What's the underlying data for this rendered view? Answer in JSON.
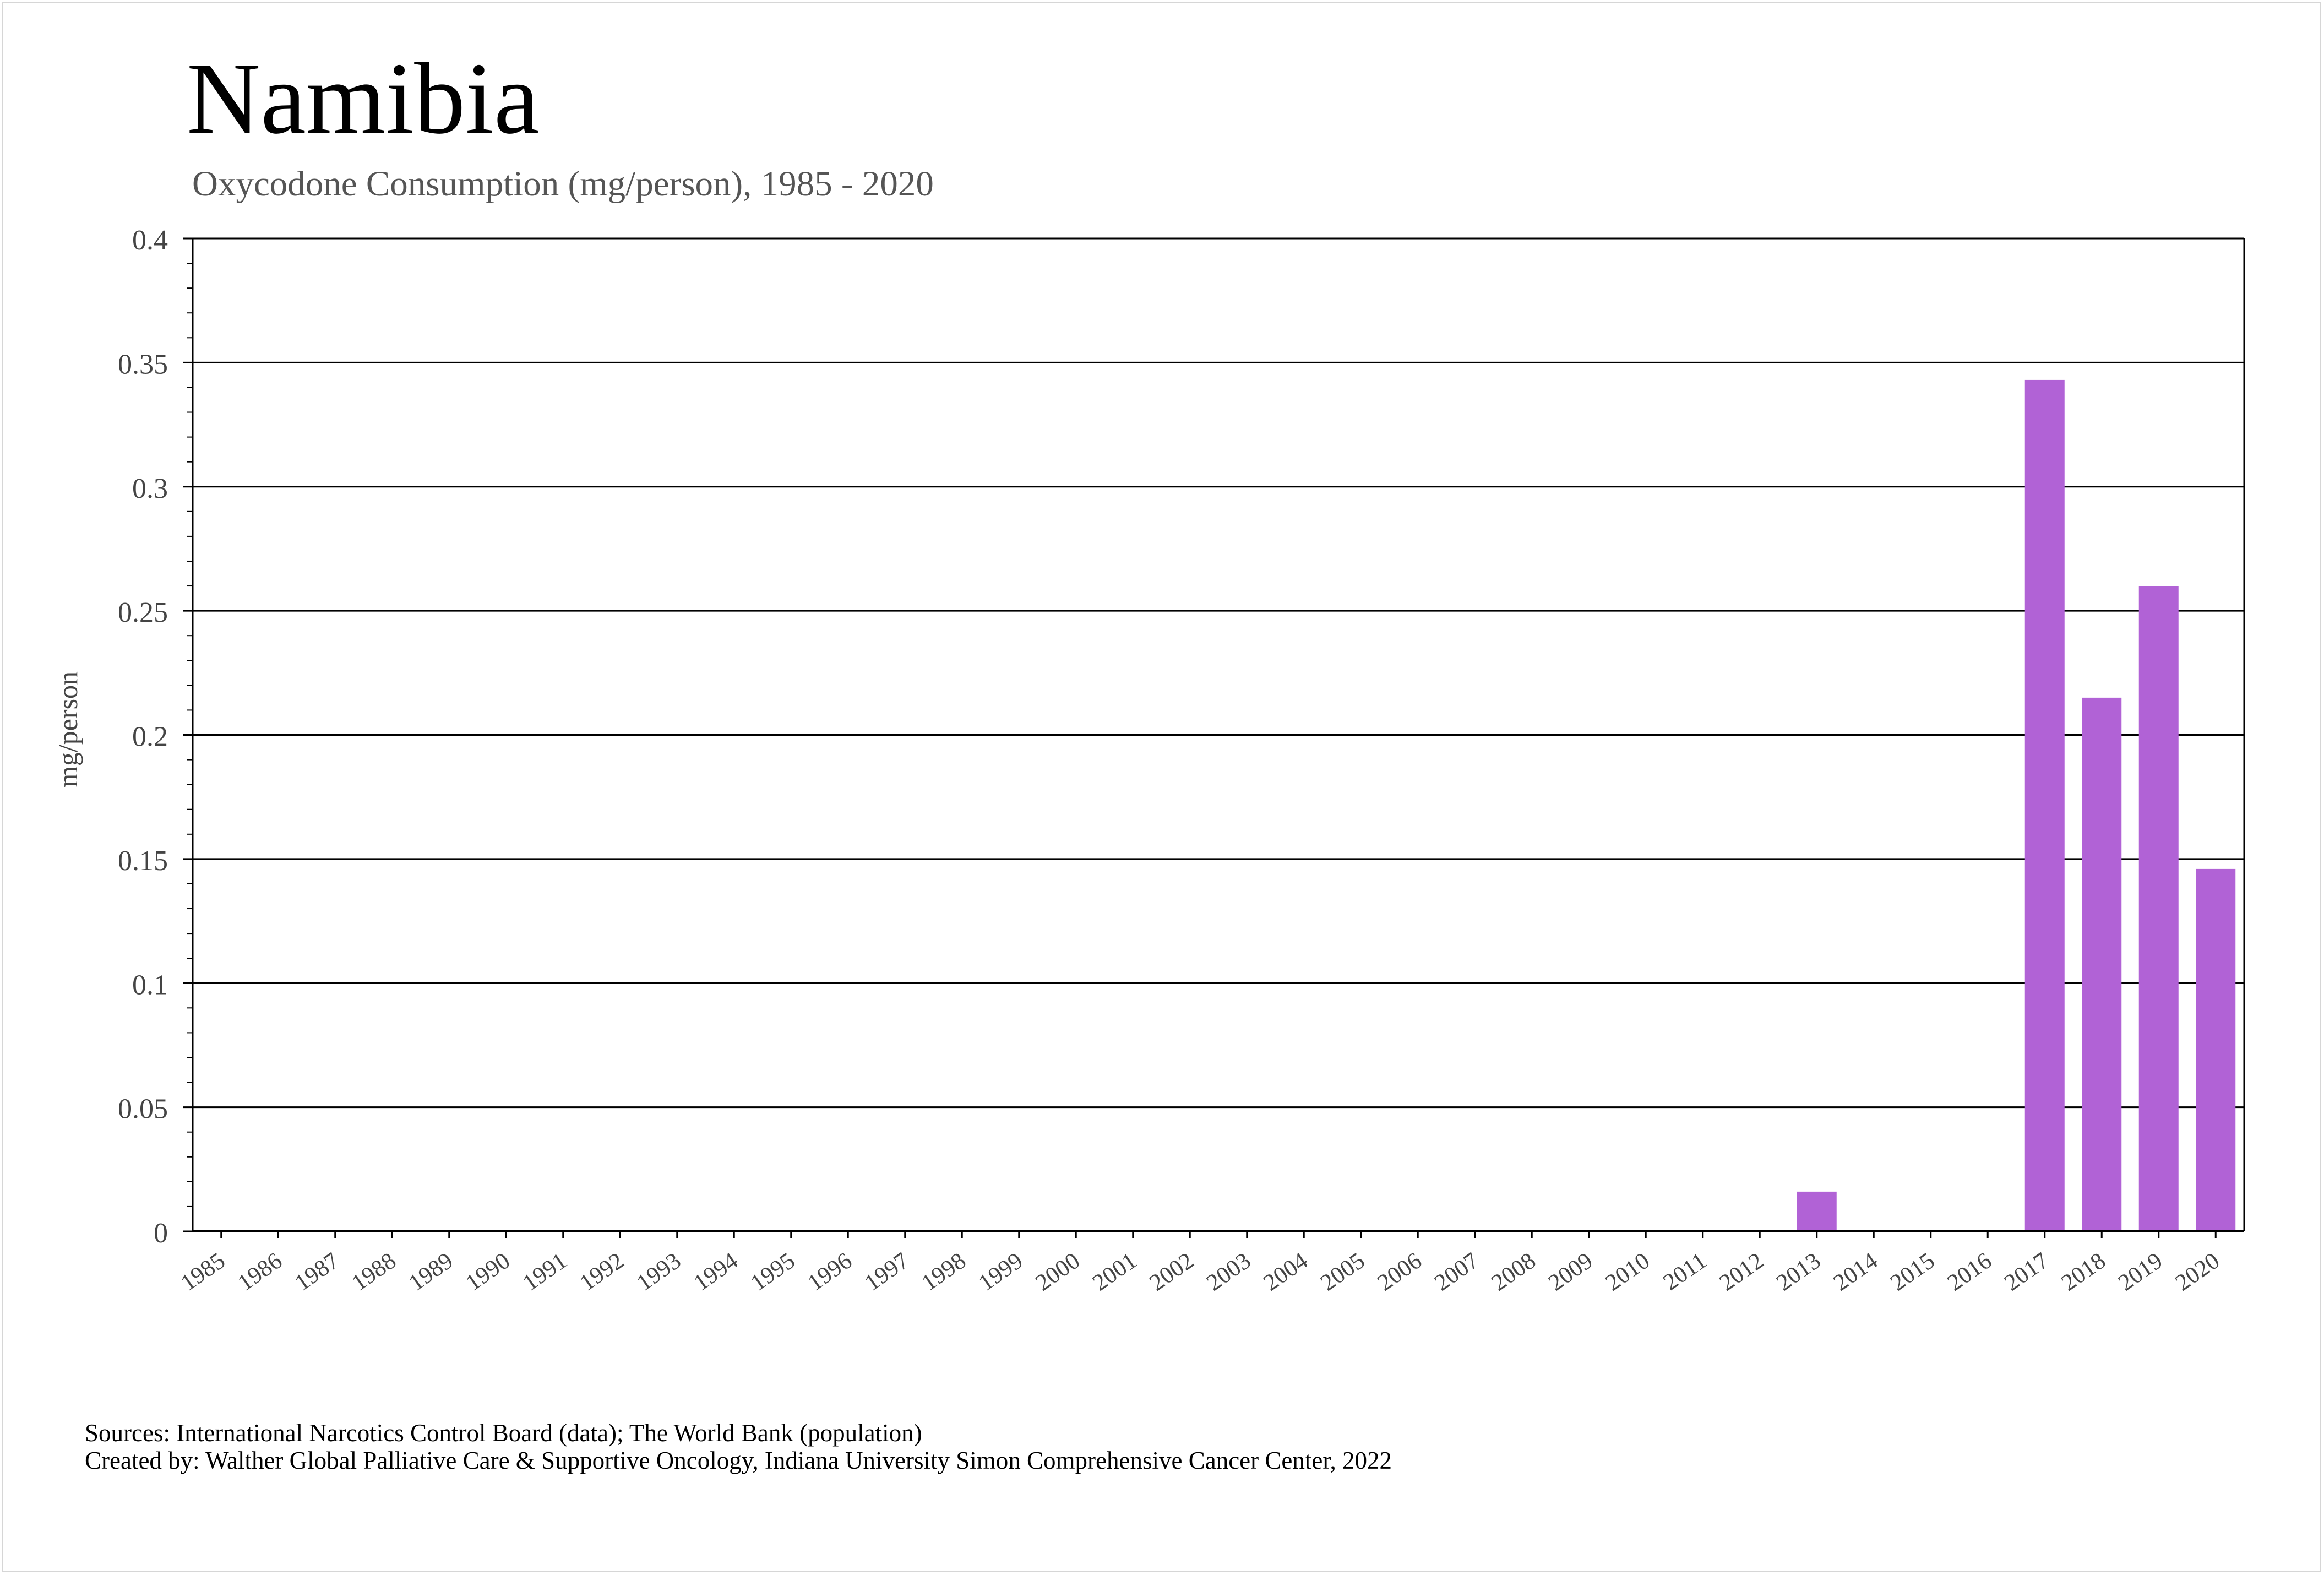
{
  "title": "Namibia",
  "subtitle": "Oxycodone Consumption (mg/person), 1985 - 2020",
  "sources_line": "Sources: International Narcotics Control Board (data); The World Bank (population)",
  "created_line": "Created by: Walther Global Palliative Care & Supportive Oncology, Indiana University Simon Comprehensive Cancer Center, 2022",
  "chart_data": {
    "type": "bar",
    "ylabel": "mg/person",
    "ylim": [
      0,
      0.4
    ],
    "yticks": [
      "0",
      "0.05",
      "0.1",
      "0.15",
      "0.2",
      "0.25",
      "0.3",
      "0.35",
      "0.4"
    ],
    "categories": [
      "1985",
      "1986",
      "1987",
      "1988",
      "1989",
      "1990",
      "1991",
      "1992",
      "1993",
      "1994",
      "1995",
      "1996",
      "1997",
      "1998",
      "1999",
      "2000",
      "2001",
      "2002",
      "2003",
      "2004",
      "2005",
      "2006",
      "2007",
      "2008",
      "2009",
      "2010",
      "2011",
      "2012",
      "2013",
      "2014",
      "2015",
      "2016",
      "2017",
      "2018",
      "2019",
      "2020"
    ],
    "values": [
      0,
      0,
      0,
      0,
      0,
      0,
      0,
      0,
      0,
      0,
      0,
      0,
      0,
      0,
      0,
      0,
      0,
      0,
      0,
      0,
      0,
      0,
      0,
      0,
      0,
      0,
      0,
      0,
      0.016,
      0,
      0,
      0,
      0.343,
      0.215,
      0.26,
      0.146
    ],
    "bar_color": "#b162d6",
    "grid": true
  }
}
